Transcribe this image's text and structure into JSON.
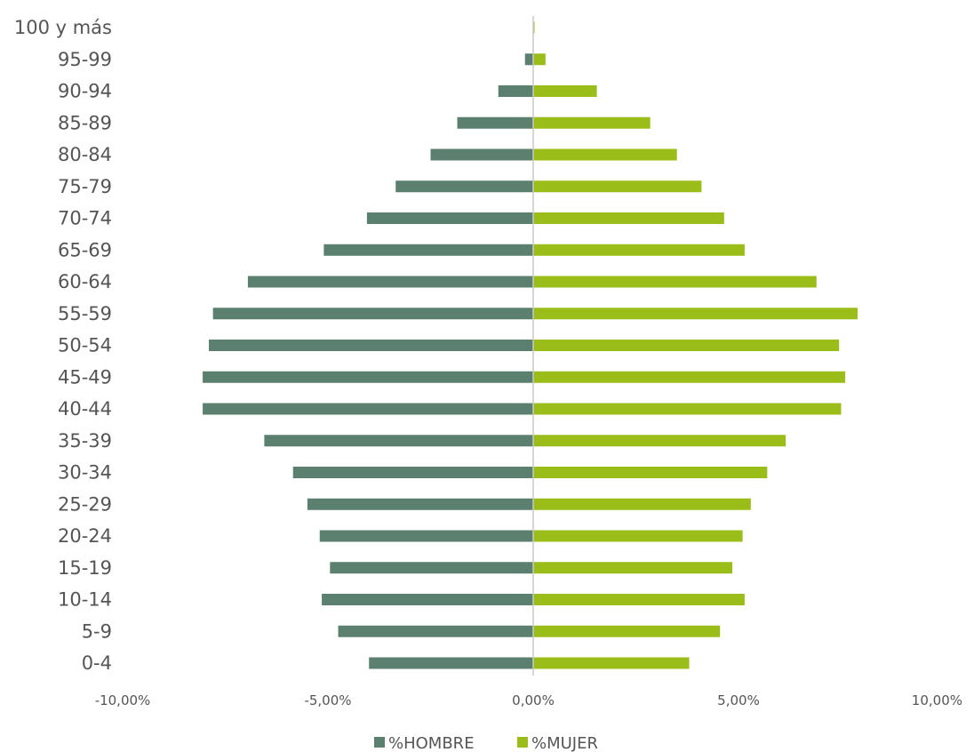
{
  "chart_data": {
    "type": "bar",
    "orientation": "horizontal",
    "categories": [
      "100 y más",
      "95-99",
      "90-94",
      "85-89",
      "80-84",
      "75-79",
      "70-74",
      "65-69",
      "60-64",
      "55-59",
      "50-54",
      "45-49",
      "40-44",
      "35-39",
      "30-34",
      "25-29",
      "20-24",
      "15-19",
      "10-14",
      "5-9",
      "0-4"
    ],
    "series": [
      {
        "name": "%HOMBRE",
        "color": "#5c8070",
        "values": [
          0.0,
          -0.2,
          -0.85,
          -1.85,
          -2.5,
          -3.35,
          -4.05,
          -5.1,
          -6.95,
          -7.8,
          -7.9,
          -8.05,
          -8.05,
          -6.55,
          -5.85,
          -5.5,
          -5.2,
          -4.95,
          -5.15,
          -4.75,
          -4.0
        ]
      },
      {
        "name": "%MUJER",
        "color": "#9bbd19",
        "values": [
          0.03,
          0.3,
          1.55,
          2.85,
          3.5,
          4.1,
          4.65,
          5.15,
          6.9,
          7.9,
          7.45,
          7.6,
          7.5,
          6.15,
          5.7,
          5.3,
          5.1,
          4.85,
          5.15,
          4.55,
          3.8
        ]
      }
    ],
    "xlim": [
      -10,
      10
    ],
    "x_ticks": [
      "-10,00%",
      "-5,00%",
      "0,00%",
      "5,00%",
      "10,00%"
    ],
    "x_tick_values": [
      -10,
      -5,
      0,
      5,
      10
    ],
    "title": "",
    "xlabel": "",
    "ylabel": "",
    "grid": false,
    "legend_position": "bottom"
  }
}
